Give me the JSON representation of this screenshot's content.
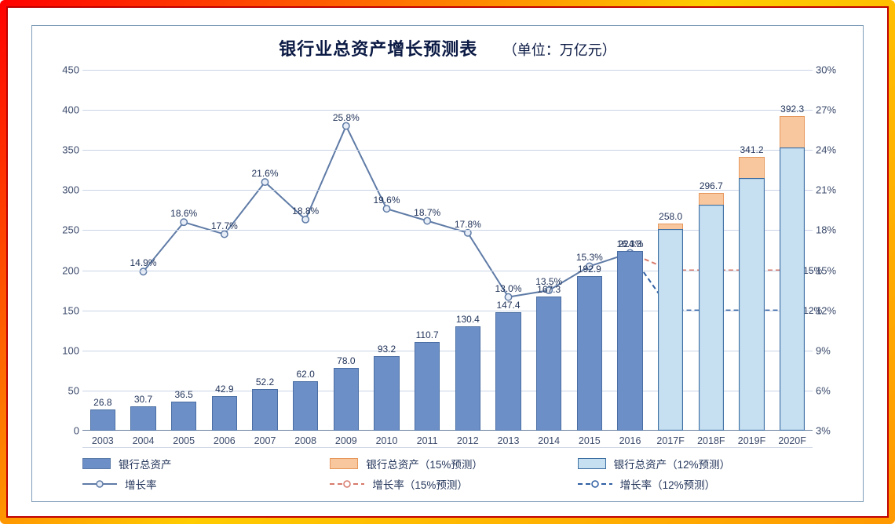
{
  "title": "银行业总资产增长预测表",
  "unit_label": "（单位：万亿元）",
  "chart": {
    "type": "bar+line-dual-axis",
    "background_color": "#ffffff",
    "grid_color": "#c9d4e6",
    "title_fontsize": 22,
    "label_fontsize": 13,
    "categories": [
      "2003",
      "2004",
      "2005",
      "2006",
      "2007",
      "2008",
      "2009",
      "2010",
      "2011",
      "2012",
      "2013",
      "2014",
      "2015",
      "2016",
      "2017F",
      "2018F",
      "2019F",
      "2020F"
    ],
    "y_left": {
      "min": 0,
      "max": 450,
      "step": 50
    },
    "y_right": {
      "min": 3,
      "max": 30,
      "step": 3,
      "suffix": "%"
    },
    "bars": {
      "actual": {
        "color": "#6c8fc7",
        "border": "#4a6ea3",
        "values": [
          26.8,
          30.7,
          36.5,
          42.9,
          52.2,
          62.0,
          78.0,
          93.2,
          110.7,
          130.4,
          147.4,
          167.3,
          192.9,
          224.3,
          null,
          null,
          null,
          null
        ]
      },
      "forecast_15": {
        "color": "#f9c79d",
        "border": "#e6975c",
        "values": [
          null,
          null,
          null,
          null,
          null,
          null,
          null,
          null,
          null,
          null,
          null,
          null,
          null,
          null,
          258.0,
          296.7,
          341.2,
          392.3
        ]
      },
      "forecast_12": {
        "color": "#c6e0f2",
        "border": "#3e6fa3",
        "values": [
          null,
          null,
          null,
          null,
          null,
          null,
          null,
          null,
          null,
          null,
          null,
          null,
          null,
          null,
          251.2,
          281.4,
          315.2,
          353.0
        ]
      }
    },
    "bar_width": 0.62,
    "lines": {
      "growth_actual": {
        "color": "#5f7ba6",
        "dash": "none",
        "marker": "circle",
        "marker_fill": "#e8eef7",
        "range": [
          0,
          13
        ],
        "values_pct": [
          null,
          14.9,
          18.6,
          17.7,
          21.6,
          18.8,
          25.8,
          19.6,
          18.7,
          17.8,
          13.0,
          13.5,
          15.3,
          16.3
        ],
        "labels": [
          "",
          "14.9%",
          "18.6%",
          "17.7%",
          "21.6%",
          "18.8%",
          "25.8%",
          "19.6%",
          "18.7%",
          "17.8%",
          "13.0%",
          "13.5%",
          "15.3%",
          "16.3%"
        ]
      },
      "growth_15": {
        "color": "#d77b6c",
        "dash": "6,4",
        "marker": "circle",
        "marker_fill": "#ffffff",
        "range": [
          13,
          17
        ],
        "values_pct": [
          15,
          15,
          15,
          15,
          15
        ],
        "end_label": "15%"
      },
      "growth_12": {
        "color": "#2f5fa3",
        "dash": "6,4",
        "marker": "circle",
        "marker_fill": "#ffffff",
        "range": [
          13,
          17
        ],
        "values_pct": [
          12,
          12,
          12,
          12,
          12
        ],
        "end_label": "12%"
      }
    }
  },
  "legend": {
    "items": [
      "银行总资产",
      "银行总资产（15%预测）",
      "银行总资产（12%预测）",
      "增长率",
      "增长率（15%预测）",
      "增长率（12%预测）"
    ]
  }
}
